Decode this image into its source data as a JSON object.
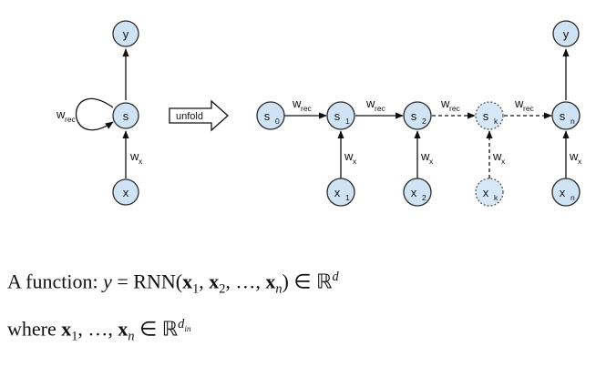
{
  "diagram": {
    "folded": {
      "output": {
        "main": "y"
      },
      "state": {
        "main": "s"
      },
      "input": {
        "main": "x"
      },
      "loop_weight": {
        "main": "w",
        "sub": "rec"
      },
      "input_weight": {
        "main": "w",
        "sub": "x"
      }
    },
    "unfold_label": "unfold",
    "unrolled": {
      "states": [
        {
          "main": "s",
          "sub": "0"
        },
        {
          "main": "s",
          "sub": "1"
        },
        {
          "main": "s",
          "sub": "2"
        },
        {
          "main": "s",
          "sub": "k"
        },
        {
          "main": "s",
          "sub": "n"
        }
      ],
      "inputs": [
        {
          "main": "x",
          "sub": "1"
        },
        {
          "main": "x",
          "sub": "2"
        },
        {
          "main": "x",
          "sub": "k"
        },
        {
          "main": "x",
          "sub": "n"
        }
      ],
      "output": {
        "main": "y"
      },
      "rec_weight": {
        "main": "w",
        "sub": "rec"
      },
      "input_weight": {
        "main": "w",
        "sub": "x"
      }
    }
  },
  "formula": {
    "line1": {
      "prefix": "A function: ",
      "y": "y",
      "eq": " = RNN(",
      "x": "x",
      "s1": "1",
      "comma1": ", ",
      "s2": "2",
      "mid": ", …, ",
      "sn": "n",
      "close": ") ∈ ℝ",
      "d": "d"
    },
    "line2": {
      "prefix": "where ",
      "x": "x",
      "s1": "1",
      "mid": ", …, ",
      "sn": "n",
      "in": " ∈ ℝ",
      "d": "d",
      "din": "in"
    }
  }
}
